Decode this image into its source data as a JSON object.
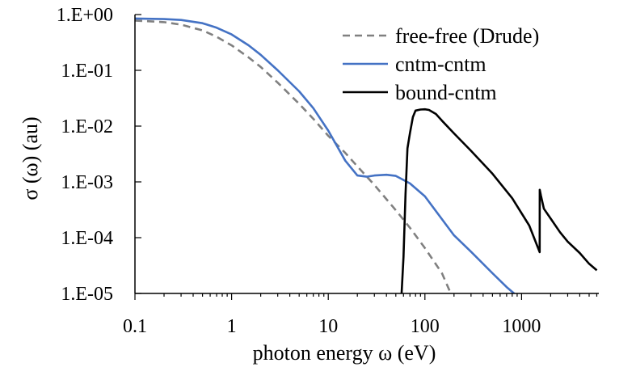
{
  "chart_data": {
    "type": "line",
    "title": "",
    "xlabel": "photon energy ω (eV)",
    "ylabel": "σ (ω)  (au)",
    "xscale": "log",
    "yscale": "log",
    "xlim": [
      0.1,
      6000
    ],
    "ylim": [
      1e-05,
      1
    ],
    "x_ticks": [
      {
        "value": 0.1,
        "label": "0.1"
      },
      {
        "value": 1,
        "label": "1"
      },
      {
        "value": 10,
        "label": "10"
      },
      {
        "value": 100,
        "label": "100"
      },
      {
        "value": 1000,
        "label": "1000"
      }
    ],
    "y_ticks": [
      {
        "value": 1,
        "label": "1.E+00"
      },
      {
        "value": 0.1,
        "label": "1.E-01"
      },
      {
        "value": 0.01,
        "label": "1.E-02"
      },
      {
        "value": 0.001,
        "label": "1.E-03"
      },
      {
        "value": 0.0001,
        "label": "1.E-04"
      },
      {
        "value": 1e-05,
        "label": "1.E-05"
      }
    ],
    "legend_position": "top-right",
    "series": [
      {
        "name": "free-free (Drude)",
        "color": "#808080",
        "style": "dashed",
        "x": [
          0.1,
          0.2,
          0.3,
          0.5,
          0.7,
          1,
          1.5,
          2,
          3,
          5,
          7,
          10,
          15,
          20,
          30,
          50,
          70,
          100,
          150,
          185
        ],
        "y": [
          0.78,
          0.73,
          0.66,
          0.52,
          0.4,
          0.28,
          0.17,
          0.115,
          0.06,
          0.025,
          0.0135,
          0.0067,
          0.0033,
          0.0019,
          0.00088,
          0.00031,
          0.00015,
          6.5e-05,
          2.3e-05,
          1e-05
        ]
      },
      {
        "name": "cntm-cntm",
        "color": "#4472c4",
        "style": "solid",
        "x": [
          0.1,
          0.2,
          0.3,
          0.5,
          0.7,
          1,
          1.5,
          2,
          3,
          5,
          7,
          10,
          15,
          20,
          25,
          30,
          40,
          50,
          70,
          100,
          200,
          300,
          500,
          700,
          900
        ],
        "y": [
          0.85,
          0.83,
          0.8,
          0.7,
          0.58,
          0.44,
          0.28,
          0.19,
          0.1,
          0.042,
          0.021,
          0.0083,
          0.0024,
          0.0013,
          0.00124,
          0.0013,
          0.00134,
          0.00128,
          0.00094,
          0.00055,
          0.00011,
          5.6e-05,
          2.3e-05,
          1.3e-05,
          9e-06
        ]
      },
      {
        "name": "bound-cntm",
        "color": "#000000",
        "style": "solid",
        "x": [
          57,
          60,
          63,
          66,
          70,
          75,
          80,
          90,
          100,
          110,
          130,
          150,
          200,
          300,
          500,
          800,
          1200,
          1540,
          1541,
          1580,
          1700,
          2000,
          2500,
          3000,
          4000,
          5000,
          6000
        ],
        "y": [
          8e-06,
          4.5e-05,
          0.0006,
          0.004,
          0.0075,
          0.0145,
          0.019,
          0.0198,
          0.02,
          0.0195,
          0.0165,
          0.0125,
          0.0074,
          0.0036,
          0.0014,
          0.00051,
          0.000165,
          5.5e-05,
          0.00072,
          0.00058,
          0.00033,
          0.00022,
          0.000125,
          8.5e-05,
          5.3e-05,
          3.4e-05,
          2.6e-05
        ]
      }
    ]
  }
}
